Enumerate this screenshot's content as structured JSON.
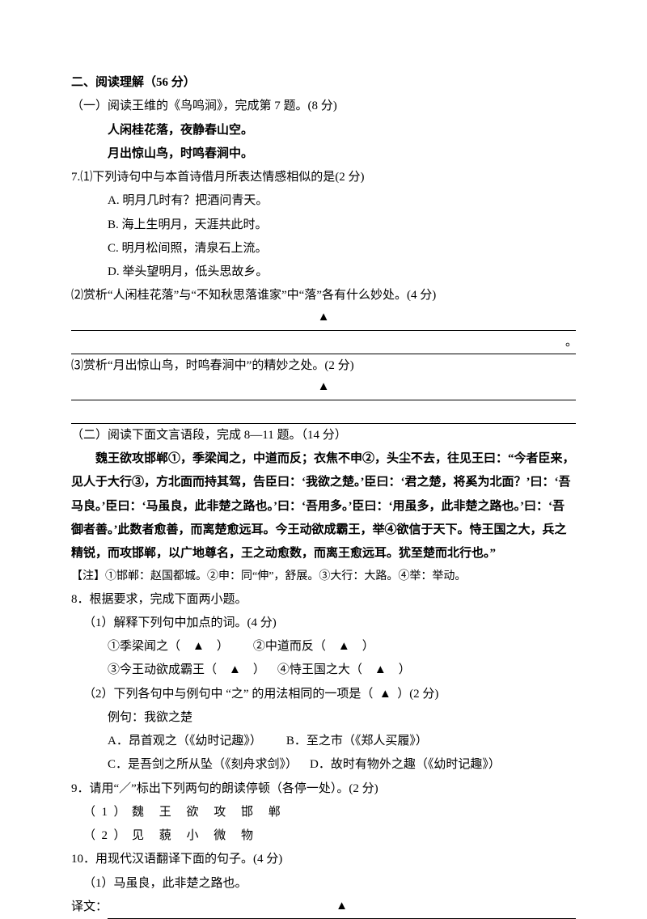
{
  "section": {
    "heading": "二、阅读理解（56 分）",
    "part1": {
      "intro": "（一）阅读王维的《鸟鸣涧》，完成第 7 题。(8 分)",
      "poem_l1": "人闲桂花落，夜静春山空。",
      "poem_l2": "月出惊山鸟，时鸣春涧中。",
      "q7_1": "7.⑴下列诗句中与本首诗借月所表达情感相似的是(2 分)",
      "optA": "A. 明月几时有？把酒问青天。",
      "optB": "B. 海上生明月，天涯共此时。",
      "optC": "C. 明月松间照，清泉石上流。",
      "optD": "D. 举头望明月，低头思故乡。",
      "q7_2": "⑵赏析“人闲桂花落”与“不知秋思落谁家”中“落”各有什么妙处。(4 分)",
      "q7_3": "⑶赏析“月出惊山鸟，时鸣春涧中”的精妙之处。(2 分)"
    },
    "part2": {
      "intro": "（二）阅读下面文言语段，完成 8—11 题。（14 分）",
      "passage1": "魏王欲攻邯郸①，季梁闻之，中道而反；衣焦不申②，头尘不去，往见王曰：“今者臣来，",
      "passage2": "见人于大行③，方北面而持其驾，告臣曰：‘我欲之楚。’臣曰：‘君之楚，将奚为北面？’曰：‘吾",
      "passage3": "马良。’臣曰：‘马虽良，此非楚之路也。’曰：‘吾用多。’臣曰：‘用虽多，此非楚之路也。’曰：‘吾",
      "passage4": "御者善。’此数者愈善，而离楚愈远耳。今王动欲成霸王，举④欲信于天下。恃王国之大，兵之",
      "passage5": "精锐，而攻邯郸，以广地尊名，王之动愈数，而离王愈远耳。犹至楚而北行也。”",
      "note": "【注】①邯郸：赵国都城。②申：同“伸”，舒展。③大行：大路。④举：举动。",
      "q8": "8．根据要求，完成下面两小题。",
      "q8_1": "（1）解释下列句中加点的词。(4 分)",
      "q8_1_a": "①季梁闻之（",
      "q8_1_b": "②中道而反（",
      "q8_1_c": "③今王动欲成霸王（",
      "q8_1_d": "④恃王国之大（",
      "q8_2": "（2）下列各句中与例句中 “之” 的用法相同的一项是（",
      "q8_2_after": "）(2 分)",
      "q8_2_ex": "例句：我欲之楚",
      "q8_2_A": "A．昂首观之（《幼时记趣》）",
      "q8_2_B": "B．至之市（《郑人买履》）",
      "q8_2_C": "C．是吾剑之所从坠（《刻舟求剑》）",
      "q8_2_D": "D．故时有物外之趣（《幼时记趣》）",
      "q9": "9．请用“／”标出下列两句的朗读停顿（各停一处）。(2 分)",
      "q9_1": "（1）魏 王 欲 攻 邯 郸",
      "q9_2": "（2）见 藐 小 微 物",
      "q10": "10．用现代汉语翻译下面的句子。(4 分)",
      "q10_1": "（1）马虽良，此非楚之路也。",
      "q10_trans": "译文："
    }
  },
  "marks": {
    "triangle": "▲"
  }
}
